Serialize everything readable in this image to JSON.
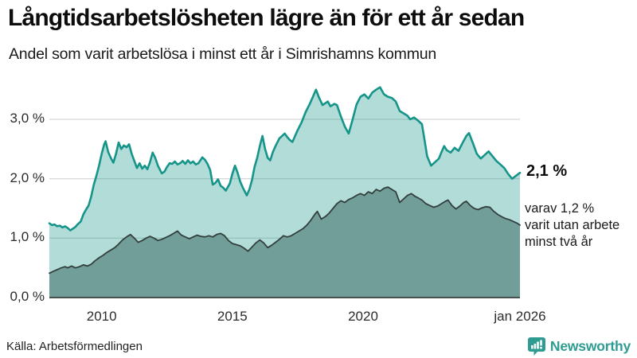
{
  "header": {
    "title": "Långtidsarbetslösheten lägre än för ett år sedan",
    "subtitle": "Andel som varit arbetslösa i minst ett år i Simrishamns kommun"
  },
  "footer": {
    "source": "Källa: Arbetsförmedlingen",
    "brand": "Newsworthy",
    "brand_color": "#2f9c92"
  },
  "chart_data": {
    "type": "area",
    "title": "Långtidsarbetslösheten lägre än för ett år sedan",
    "subtitle": "Andel som varit arbetslösa i minst ett år i Simrishamns kommun",
    "x_range": [
      2008,
      2026
    ],
    "y_range": [
      0,
      3.7
    ],
    "grid": "on",
    "grid_color": "#d8d8d8",
    "baseline_color": "#47524f",
    "y_ticks": [
      {
        "label": "0,0 %",
        "value": 0
      },
      {
        "label": "1,0 %",
        "value": 1
      },
      {
        "label": "2,0 %",
        "value": 2
      },
      {
        "label": "3,0 %",
        "value": 3
      }
    ],
    "x_ticks": [
      {
        "label": "2010",
        "year": 2010
      },
      {
        "label": "2015",
        "year": 2015
      },
      {
        "label": "2020",
        "year": 2020
      },
      {
        "label": "jan 2026",
        "year": 2026
      }
    ],
    "annotations": {
      "end_label": "2,1 %",
      "secondary_label_lines": [
        "varav 1,2 %",
        "varit utan arbete",
        "minst två år"
      ]
    },
    "series": [
      {
        "name": "Andel arbetslösa minst ett år",
        "line_color": "#15948a",
        "fill_color": "#15948a",
        "fill_opacity": 0.33,
        "line_width": 2.6,
        "last_value": 2.1,
        "points": [
          [
            2008.0,
            1.25
          ],
          [
            2008.1,
            1.22
          ],
          [
            2008.2,
            1.23
          ],
          [
            2008.3,
            1.2
          ],
          [
            2008.4,
            1.21
          ],
          [
            2008.5,
            1.18
          ],
          [
            2008.6,
            1.2
          ],
          [
            2008.7,
            1.17
          ],
          [
            2008.8,
            1.13
          ],
          [
            2008.9,
            1.16
          ],
          [
            2009.0,
            1.19
          ],
          [
            2009.1,
            1.24
          ],
          [
            2009.2,
            1.28
          ],
          [
            2009.3,
            1.4
          ],
          [
            2009.4,
            1.48
          ],
          [
            2009.5,
            1.55
          ],
          [
            2009.6,
            1.7
          ],
          [
            2009.7,
            1.9
          ],
          [
            2009.8,
            2.05
          ],
          [
            2009.9,
            2.22
          ],
          [
            2010.0,
            2.42
          ],
          [
            2010.1,
            2.58
          ],
          [
            2010.15,
            2.63
          ],
          [
            2010.25,
            2.45
          ],
          [
            2010.35,
            2.35
          ],
          [
            2010.45,
            2.27
          ],
          [
            2010.55,
            2.42
          ],
          [
            2010.65,
            2.61
          ],
          [
            2010.75,
            2.5
          ],
          [
            2010.85,
            2.56
          ],
          [
            2010.95,
            2.53
          ],
          [
            2011.05,
            2.58
          ],
          [
            2011.15,
            2.42
          ],
          [
            2011.25,
            2.3
          ],
          [
            2011.35,
            2.18
          ],
          [
            2011.45,
            2.26
          ],
          [
            2011.55,
            2.17
          ],
          [
            2011.65,
            2.22
          ],
          [
            2011.75,
            2.16
          ],
          [
            2011.85,
            2.28
          ],
          [
            2011.95,
            2.44
          ],
          [
            2012.05,
            2.35
          ],
          [
            2012.15,
            2.22
          ],
          [
            2012.3,
            2.09
          ],
          [
            2012.4,
            2.12
          ],
          [
            2012.5,
            2.2
          ],
          [
            2012.6,
            2.26
          ],
          [
            2012.7,
            2.25
          ],
          [
            2012.8,
            2.29
          ],
          [
            2012.9,
            2.24
          ],
          [
            2013.0,
            2.26
          ],
          [
            2013.1,
            2.3
          ],
          [
            2013.2,
            2.25
          ],
          [
            2013.3,
            2.31
          ],
          [
            2013.4,
            2.26
          ],
          [
            2013.5,
            2.29
          ],
          [
            2013.6,
            2.24
          ],
          [
            2013.7,
            2.26
          ],
          [
            2013.85,
            2.36
          ],
          [
            2013.95,
            2.32
          ],
          [
            2014.05,
            2.25
          ],
          [
            2014.15,
            2.15
          ],
          [
            2014.25,
            1.9
          ],
          [
            2014.35,
            1.93
          ],
          [
            2014.45,
            1.99
          ],
          [
            2014.55,
            1.88
          ],
          [
            2014.65,
            1.85
          ],
          [
            2014.75,
            1.8
          ],
          [
            2014.9,
            1.92
          ],
          [
            2015.0,
            2.08
          ],
          [
            2015.1,
            2.22
          ],
          [
            2015.2,
            2.1
          ],
          [
            2015.3,
            1.95
          ],
          [
            2015.4,
            1.85
          ],
          [
            2015.55,
            1.72
          ],
          [
            2015.65,
            1.82
          ],
          [
            2015.75,
            1.98
          ],
          [
            2015.85,
            2.2
          ],
          [
            2015.95,
            2.35
          ],
          [
            2016.05,
            2.55
          ],
          [
            2016.15,
            2.72
          ],
          [
            2016.25,
            2.5
          ],
          [
            2016.35,
            2.35
          ],
          [
            2016.45,
            2.31
          ],
          [
            2016.55,
            2.45
          ],
          [
            2016.65,
            2.55
          ],
          [
            2016.8,
            2.68
          ],
          [
            2016.9,
            2.72
          ],
          [
            2017.0,
            2.76
          ],
          [
            2017.1,
            2.7
          ],
          [
            2017.2,
            2.65
          ],
          [
            2017.3,
            2.62
          ],
          [
            2017.4,
            2.72
          ],
          [
            2017.5,
            2.82
          ],
          [
            2017.65,
            2.95
          ],
          [
            2017.8,
            3.12
          ],
          [
            2017.95,
            3.25
          ],
          [
            2018.05,
            3.35
          ],
          [
            2018.2,
            3.5
          ],
          [
            2018.3,
            3.38
          ],
          [
            2018.45,
            3.24
          ],
          [
            2018.55,
            3.27
          ],
          [
            2018.65,
            3.3
          ],
          [
            2018.75,
            3.22
          ],
          [
            2018.9,
            3.26
          ],
          [
            2019.0,
            3.24
          ],
          [
            2019.15,
            3.05
          ],
          [
            2019.3,
            2.88
          ],
          [
            2019.45,
            2.76
          ],
          [
            2019.6,
            3.0
          ],
          [
            2019.75,
            3.25
          ],
          [
            2019.9,
            3.38
          ],
          [
            2020.05,
            3.42
          ],
          [
            2020.2,
            3.35
          ],
          [
            2020.35,
            3.45
          ],
          [
            2020.5,
            3.5
          ],
          [
            2020.65,
            3.54
          ],
          [
            2020.8,
            3.42
          ],
          [
            2020.95,
            3.38
          ],
          [
            2021.1,
            3.36
          ],
          [
            2021.25,
            3.3
          ],
          [
            2021.4,
            3.14
          ],
          [
            2021.55,
            3.1
          ],
          [
            2021.7,
            3.06
          ],
          [
            2021.8,
            3.0
          ],
          [
            2021.95,
            3.03
          ],
          [
            2022.1,
            2.98
          ],
          [
            2022.25,
            2.92
          ],
          [
            2022.35,
            2.65
          ],
          [
            2022.45,
            2.38
          ],
          [
            2022.6,
            2.22
          ],
          [
            2022.75,
            2.28
          ],
          [
            2022.9,
            2.34
          ],
          [
            2023.0,
            2.45
          ],
          [
            2023.1,
            2.55
          ],
          [
            2023.2,
            2.48
          ],
          [
            2023.35,
            2.44
          ],
          [
            2023.5,
            2.52
          ],
          [
            2023.65,
            2.47
          ],
          [
            2023.8,
            2.6
          ],
          [
            2023.95,
            2.72
          ],
          [
            2024.05,
            2.77
          ],
          [
            2024.2,
            2.6
          ],
          [
            2024.35,
            2.42
          ],
          [
            2024.5,
            2.34
          ],
          [
            2024.65,
            2.4
          ],
          [
            2024.8,
            2.46
          ],
          [
            2024.95,
            2.38
          ],
          [
            2025.1,
            2.3
          ],
          [
            2025.25,
            2.24
          ],
          [
            2025.4,
            2.18
          ],
          [
            2025.55,
            2.08
          ],
          [
            2025.7,
            2.0
          ],
          [
            2025.85,
            2.05
          ],
          [
            2026.0,
            2.1
          ]
        ]
      },
      {
        "name": "varav utan arbete minst två år",
        "line_color": "#333f3d",
        "fill_color": "#729e99",
        "fill_opacity": 1,
        "line_width": 1.8,
        "last_value": 1.2,
        "points": [
          [
            2008.0,
            0.41
          ],
          [
            2008.15,
            0.44
          ],
          [
            2008.3,
            0.47
          ],
          [
            2008.45,
            0.5
          ],
          [
            2008.6,
            0.52
          ],
          [
            2008.7,
            0.5
          ],
          [
            2008.85,
            0.53
          ],
          [
            2009.0,
            0.5
          ],
          [
            2009.15,
            0.52
          ],
          [
            2009.3,
            0.55
          ],
          [
            2009.45,
            0.53
          ],
          [
            2009.6,
            0.56
          ],
          [
            2009.75,
            0.62
          ],
          [
            2009.9,
            0.67
          ],
          [
            2010.05,
            0.71
          ],
          [
            2010.2,
            0.76
          ],
          [
            2010.35,
            0.8
          ],
          [
            2010.5,
            0.84
          ],
          [
            2010.65,
            0.9
          ],
          [
            2010.8,
            0.97
          ],
          [
            2010.95,
            1.02
          ],
          [
            2011.1,
            1.06
          ],
          [
            2011.25,
            1.0
          ],
          [
            2011.4,
            0.93
          ],
          [
            2011.55,
            0.96
          ],
          [
            2011.7,
            1.0
          ],
          [
            2011.85,
            1.03
          ],
          [
            2012.0,
            1.0
          ],
          [
            2012.15,
            0.96
          ],
          [
            2012.3,
            0.98
          ],
          [
            2012.45,
            1.01
          ],
          [
            2012.6,
            1.04
          ],
          [
            2012.75,
            1.08
          ],
          [
            2012.9,
            1.12
          ],
          [
            2013.05,
            1.05
          ],
          [
            2013.2,
            1.02
          ],
          [
            2013.35,
            0.99
          ],
          [
            2013.5,
            1.02
          ],
          [
            2013.65,
            1.05
          ],
          [
            2013.8,
            1.03
          ],
          [
            2013.95,
            1.02
          ],
          [
            2014.1,
            1.04
          ],
          [
            2014.25,
            1.02
          ],
          [
            2014.4,
            1.06
          ],
          [
            2014.55,
            1.08
          ],
          [
            2014.7,
            1.04
          ],
          [
            2014.85,
            0.96
          ],
          [
            2015.0,
            0.91
          ],
          [
            2015.15,
            0.89
          ],
          [
            2015.3,
            0.87
          ],
          [
            2015.45,
            0.83
          ],
          [
            2015.6,
            0.78
          ],
          [
            2015.75,
            0.85
          ],
          [
            2015.9,
            0.92
          ],
          [
            2016.05,
            0.97
          ],
          [
            2016.2,
            0.92
          ],
          [
            2016.35,
            0.84
          ],
          [
            2016.5,
            0.88
          ],
          [
            2016.65,
            0.93
          ],
          [
            2016.8,
            0.98
          ],
          [
            2016.95,
            1.04
          ],
          [
            2017.1,
            1.02
          ],
          [
            2017.25,
            1.04
          ],
          [
            2017.4,
            1.08
          ],
          [
            2017.55,
            1.12
          ],
          [
            2017.7,
            1.16
          ],
          [
            2017.85,
            1.22
          ],
          [
            2018.0,
            1.3
          ],
          [
            2018.15,
            1.4
          ],
          [
            2018.25,
            1.45
          ],
          [
            2018.4,
            1.32
          ],
          [
            2018.55,
            1.36
          ],
          [
            2018.7,
            1.42
          ],
          [
            2018.85,
            1.5
          ],
          [
            2019.0,
            1.58
          ],
          [
            2019.15,
            1.63
          ],
          [
            2019.3,
            1.6
          ],
          [
            2019.45,
            1.65
          ],
          [
            2019.6,
            1.68
          ],
          [
            2019.75,
            1.72
          ],
          [
            2019.9,
            1.75
          ],
          [
            2020.05,
            1.72
          ],
          [
            2020.2,
            1.78
          ],
          [
            2020.35,
            1.75
          ],
          [
            2020.5,
            1.82
          ],
          [
            2020.65,
            1.79
          ],
          [
            2020.8,
            1.84
          ],
          [
            2020.95,
            1.86
          ],
          [
            2021.1,
            1.82
          ],
          [
            2021.25,
            1.78
          ],
          [
            2021.4,
            1.6
          ],
          [
            2021.55,
            1.66
          ],
          [
            2021.7,
            1.72
          ],
          [
            2021.85,
            1.75
          ],
          [
            2022.0,
            1.7
          ],
          [
            2022.1,
            1.68
          ],
          [
            2022.25,
            1.64
          ],
          [
            2022.4,
            1.58
          ],
          [
            2022.55,
            1.55
          ],
          [
            2022.7,
            1.52
          ],
          [
            2022.85,
            1.54
          ],
          [
            2023.0,
            1.58
          ],
          [
            2023.15,
            1.62
          ],
          [
            2023.25,
            1.64
          ],
          [
            2023.4,
            1.55
          ],
          [
            2023.55,
            1.49
          ],
          [
            2023.7,
            1.54
          ],
          [
            2023.85,
            1.6
          ],
          [
            2023.95,
            1.62
          ],
          [
            2024.1,
            1.55
          ],
          [
            2024.25,
            1.5
          ],
          [
            2024.4,
            1.48
          ],
          [
            2024.55,
            1.51
          ],
          [
            2024.7,
            1.53
          ],
          [
            2024.85,
            1.52
          ],
          [
            2025.0,
            1.45
          ],
          [
            2025.15,
            1.4
          ],
          [
            2025.3,
            1.36
          ],
          [
            2025.45,
            1.33
          ],
          [
            2025.6,
            1.31
          ],
          [
            2025.75,
            1.28
          ],
          [
            2025.9,
            1.25
          ],
          [
            2026.0,
            1.22
          ]
        ]
      }
    ]
  }
}
